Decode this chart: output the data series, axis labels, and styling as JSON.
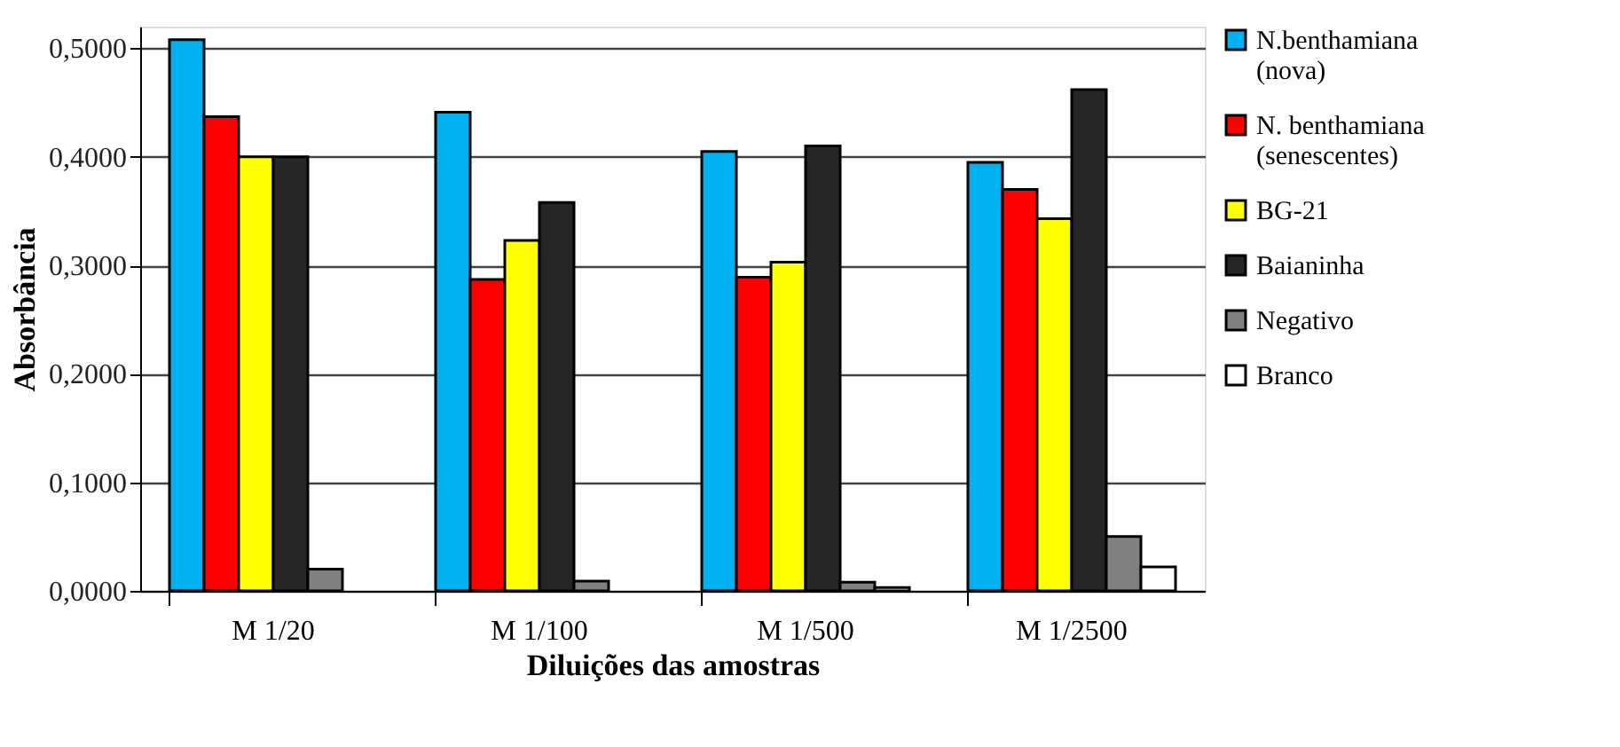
{
  "chart_data": {
    "type": "bar",
    "xlabel": "Diluições das amostras",
    "ylabel": "Absorbância",
    "categories": [
      "M 1/20",
      "M 1/100",
      "M 1/500",
      "M 1/2500"
    ],
    "series": [
      {
        "name": "N.benthamiana (nova)",
        "color": "#00b0f0",
        "values": [
          0.508,
          0.441,
          0.405,
          0.395
        ]
      },
      {
        "name": "N. benthamiana (senescentes)",
        "color": "#ff0000",
        "values": [
          0.437,
          0.287,
          0.289,
          0.37
        ]
      },
      {
        "name": "BG-21",
        "color": "#ffff00",
        "values": [
          0.4,
          0.323,
          0.303,
          0.343
        ]
      },
      {
        "name": "Baianinha",
        "color": "#262626",
        "values": [
          0.4,
          0.358,
          0.41,
          0.462
        ]
      },
      {
        "name": "Negativo",
        "color": "#808080",
        "values": [
          0.02,
          0.009,
          0.008,
          0.05
        ]
      },
      {
        "name": "Branco",
        "color": "#ffffff",
        "values": [
          null,
          null,
          0.003,
          0.022
        ]
      }
    ],
    "ylim": [
      0,
      0.52
    ],
    "yticks": [
      {
        "value": 0,
        "label": "0,0000"
      },
      {
        "value": 0.1,
        "label": "0,1000"
      },
      {
        "value": 0.2,
        "label": "0,2000"
      },
      {
        "value": 0.3,
        "label": "0,3000"
      },
      {
        "value": 0.4,
        "label": "0,4000"
      },
      {
        "value": 0.5,
        "label": "0,5000"
      }
    ],
    "grid": "y",
    "legend": "right"
  }
}
